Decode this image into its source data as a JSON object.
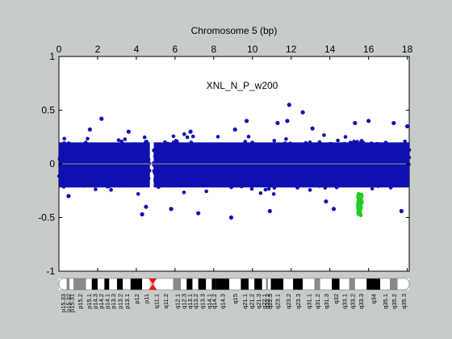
{
  "chart_data": {
    "type": "scatter",
    "title": "Chromosome 5 (bp)",
    "annotation": "XNL_N_P_w200",
    "x_axis": {
      "position": "top",
      "range": [
        0,
        18.1
      ],
      "ticks": [
        0,
        2,
        4,
        6,
        8,
        10,
        12,
        14,
        16,
        18
      ],
      "tick_labels": [
        "0",
        "2",
        "4",
        "6",
        "8",
        "10",
        "12",
        "14",
        "16",
        "18"
      ]
    },
    "y_axis": {
      "range": [
        -1,
        1
      ],
      "ticks": [
        -1,
        -0.5,
        0,
        0.5,
        1
      ],
      "tick_labels": [
        "-1",
        "-0.5",
        "0",
        "0.5",
        "1"
      ]
    },
    "reference_line": {
      "y": 0,
      "color": "#9a9a9a"
    },
    "grid": false,
    "series": [
      {
        "color": "#1010b0",
        "description_band": {
          "y_low": -0.38,
          "y_high": 0.32
        },
        "gap_x": [
          4.7,
          4.9
        ],
        "outliers": [
          [
            1.6,
            0.32
          ],
          [
            2.2,
            0.42
          ],
          [
            3.6,
            0.3
          ],
          [
            4.3,
            -0.47
          ],
          [
            4.5,
            -0.4
          ],
          [
            6.8,
            0.3
          ],
          [
            7.2,
            -0.46
          ],
          [
            8.9,
            -0.5
          ],
          [
            9.7,
            0.4
          ],
          [
            10.9,
            -0.44
          ],
          [
            11.3,
            0.38
          ],
          [
            11.8,
            0.4
          ],
          [
            11.9,
            0.55
          ],
          [
            12.6,
            0.48
          ],
          [
            13.1,
            0.33
          ],
          [
            14.2,
            -0.42
          ],
          [
            15.3,
            0.38
          ],
          [
            16.0,
            0.4
          ],
          [
            17.3,
            0.38
          ],
          [
            17.7,
            -0.44
          ],
          [
            18.0,
            0.35
          ],
          [
            0.5,
            -0.3
          ],
          [
            5.8,
            -0.42
          ],
          [
            9.1,
            0.32
          ],
          [
            13.8,
            -0.35
          ]
        ]
      },
      {
        "color": "#22cc22",
        "x_range": [
          15.45,
          15.65
        ],
        "y_range": [
          -0.48,
          -0.28
        ]
      }
    ]
  },
  "ideogram": {
    "centromere_x": 4.85,
    "bands": [
      {
        "label": "p15.33",
        "x0": 0.0,
        "x1": 0.4,
        "shade": "white"
      },
      {
        "label": "p15.32",
        "x0": 0.4,
        "x1": 0.55,
        "shade": "gray"
      },
      {
        "label": "p15.31",
        "x0": 0.55,
        "x1": 0.75,
        "shade": "white"
      },
      {
        "label": "p15.2",
        "x0": 0.75,
        "x1": 1.4,
        "shade": "gray"
      },
      {
        "label": "p15.1",
        "x0": 1.4,
        "x1": 1.7,
        "shade": "white"
      },
      {
        "label": "p14.3",
        "x0": 1.7,
        "x1": 2.0,
        "shade": "black"
      },
      {
        "label": "p14.2",
        "x0": 2.0,
        "x1": 2.35,
        "shade": "white"
      },
      {
        "label": "p14.1",
        "x0": 2.35,
        "x1": 2.6,
        "shade": "black"
      },
      {
        "label": "p13.3",
        "x0": 2.6,
        "x1": 3.0,
        "shade": "white"
      },
      {
        "label": "p13.2",
        "x0": 3.0,
        "x1": 3.3,
        "shade": "black"
      },
      {
        "label": "p13.1",
        "x0": 3.3,
        "x1": 3.7,
        "shade": "white"
      },
      {
        "label": "p12",
        "x0": 3.7,
        "x1": 4.3,
        "shade": "black"
      },
      {
        "label": "p11",
        "x0": 4.3,
        "x1": 4.7,
        "shade": "white"
      },
      {
        "label": "q11.1",
        "x0": 4.95,
        "x1": 5.1,
        "shade": "white"
      },
      {
        "label": "q11.2",
        "x0": 5.1,
        "x1": 5.9,
        "shade": "white"
      },
      {
        "label": "q12.1",
        "x0": 5.9,
        "x1": 6.3,
        "shade": "gray"
      },
      {
        "label": "q12.3",
        "x0": 6.3,
        "x1": 6.6,
        "shade": "white"
      },
      {
        "label": "q13.1",
        "x0": 6.6,
        "x1": 6.9,
        "shade": "black"
      },
      {
        "label": "q13.2",
        "x0": 6.9,
        "x1": 7.2,
        "shade": "white"
      },
      {
        "label": "q13.3",
        "x0": 7.2,
        "x1": 7.6,
        "shade": "black"
      },
      {
        "label": "q14.1",
        "x0": 7.6,
        "x1": 7.9,
        "shade": "white"
      },
      {
        "label": "q14.2",
        "x0": 7.9,
        "x1": 8.1,
        "shade": "black"
      },
      {
        "label": "q14.3",
        "x0": 8.1,
        "x1": 8.8,
        "shade": "black"
      },
      {
        "label": "q15",
        "x0": 8.8,
        "x1": 9.4,
        "shade": "white"
      },
      {
        "label": "q21.1",
        "x0": 9.4,
        "x1": 9.8,
        "shade": "black"
      },
      {
        "label": "q21.2",
        "x0": 9.8,
        "x1": 10.1,
        "shade": "white"
      },
      {
        "label": "q21.3",
        "x0": 10.1,
        "x1": 10.5,
        "shade": "black"
      },
      {
        "label": "q22.1",
        "x0": 10.5,
        "x1": 10.7,
        "shade": "white"
      },
      {
        "label": "q22.2",
        "x0": 10.7,
        "x1": 10.8,
        "shade": "gray"
      },
      {
        "label": "q22.3",
        "x0": 10.8,
        "x1": 10.95,
        "shade": "white"
      },
      {
        "label": "q23.1",
        "x0": 10.95,
        "x1": 11.6,
        "shade": "black"
      },
      {
        "label": "q23.2",
        "x0": 11.6,
        "x1": 12.1,
        "shade": "white"
      },
      {
        "label": "q23.3",
        "x0": 12.1,
        "x1": 12.6,
        "shade": "black"
      },
      {
        "label": "q31.1",
        "x0": 12.6,
        "x1": 13.2,
        "shade": "white"
      },
      {
        "label": "q31.2",
        "x0": 13.2,
        "x1": 13.5,
        "shade": "gray"
      },
      {
        "label": "q31.3",
        "x0": 13.5,
        "x1": 14.1,
        "shade": "white"
      },
      {
        "label": "q32",
        "x0": 14.1,
        "x1": 14.5,
        "shade": "black"
      },
      {
        "label": "q33.1",
        "x0": 14.5,
        "x1": 15.0,
        "shade": "white"
      },
      {
        "label": "q33.2",
        "x0": 15.0,
        "x1": 15.3,
        "shade": "gray"
      },
      {
        "label": "q33.3",
        "x0": 15.3,
        "x1": 15.9,
        "shade": "white"
      },
      {
        "label": "q34",
        "x0": 15.9,
        "x1": 16.6,
        "shade": "black"
      },
      {
        "label": "q35.1",
        "x0": 16.6,
        "x1": 17.1,
        "shade": "white"
      },
      {
        "label": "q35.2",
        "x0": 17.1,
        "x1": 17.5,
        "shade": "gray"
      },
      {
        "label": "q35.3",
        "x0": 17.5,
        "x1": 18.1,
        "shade": "white"
      }
    ]
  }
}
